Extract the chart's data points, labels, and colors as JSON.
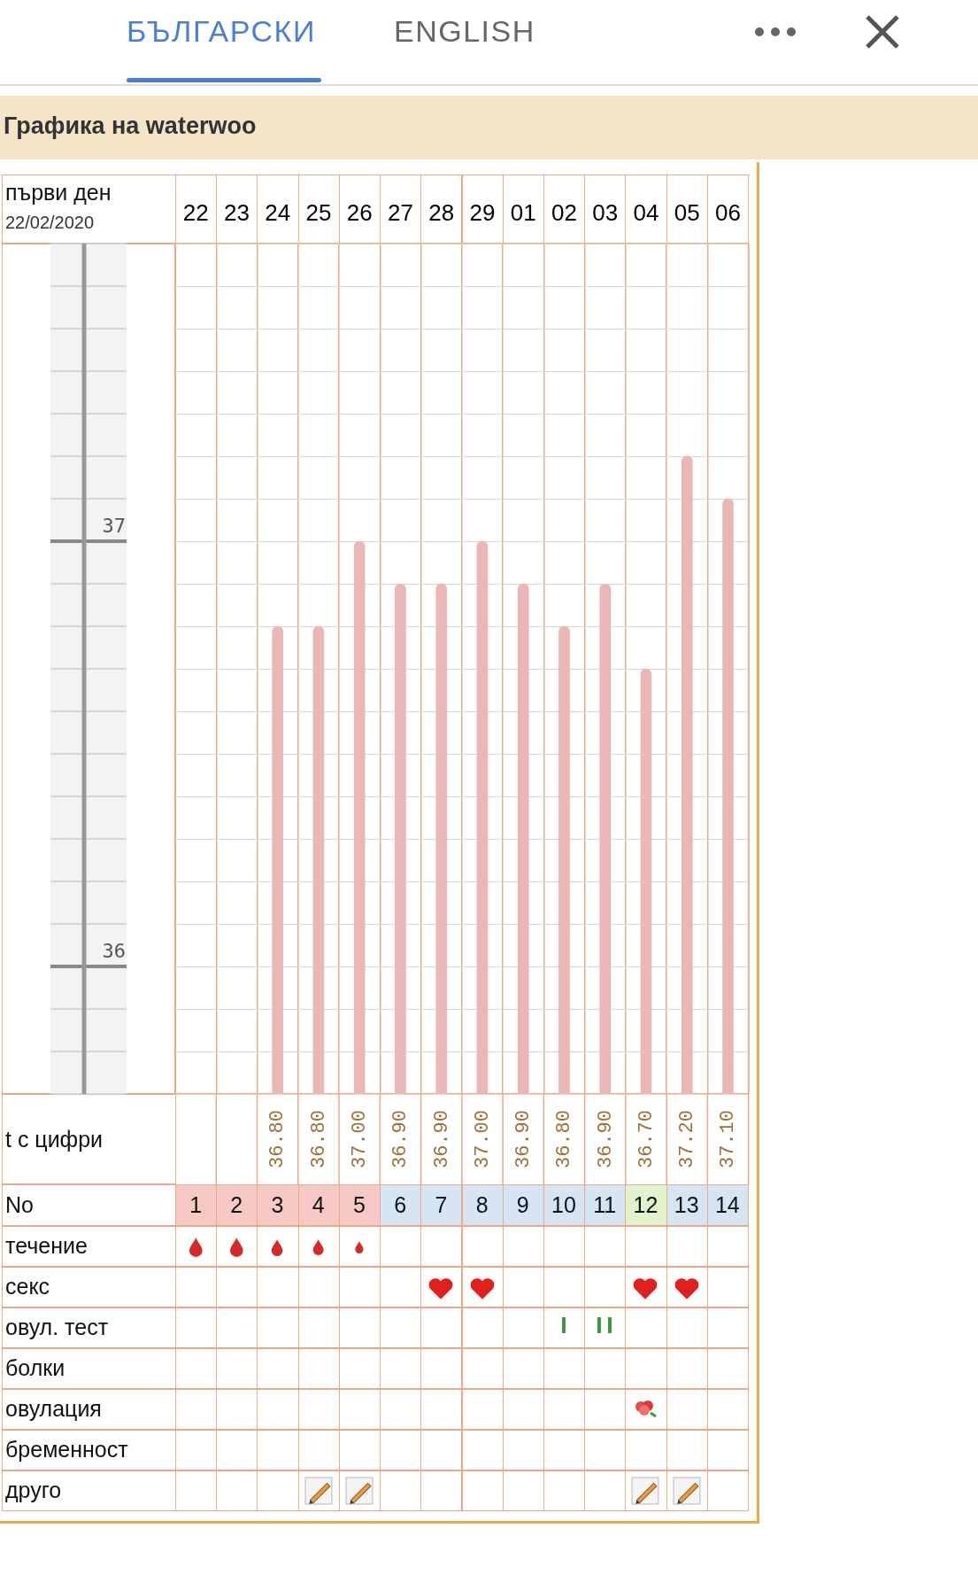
{
  "chart_data": {
    "type": "bar",
    "title": "Графика на waterwoo",
    "categories": [
      "22",
      "23",
      "24",
      "25",
      "26",
      "27",
      "28",
      "29",
      "01",
      "02",
      "03",
      "04",
      "05",
      "06"
    ],
    "values": [
      null,
      null,
      36.8,
      36.8,
      37.0,
      36.9,
      36.9,
      37.0,
      36.9,
      36.8,
      36.9,
      36.7,
      37.2,
      37.1
    ],
    "value_labels": [
      null,
      null,
      "36.80",
      "36.80",
      "37.00",
      "36.90",
      "36.90",
      "37.00",
      "36.90",
      "36.80",
      "36.90",
      "36.70",
      "37.20",
      "37.10"
    ],
    "color": "#ebb6b6",
    "ylim": [
      35.7,
      37.7
    ],
    "yticks": [
      {
        "value": 35.7,
        "label": null
      },
      {
        "value": 35.8,
        "label": null
      },
      {
        "value": 35.9,
        "label": null
      },
      36,
      {
        "value": 36.1,
        "label": null
      },
      {
        "value": 36.2,
        "label": null
      },
      {
        "value": 36.3,
        "label": null
      },
      {
        "value": 36.4,
        "label": null
      },
      {
        "value": 36.5,
        "label": null
      },
      {
        "value": 36.6,
        "label": null
      },
      {
        "value": 36.7,
        "label": null
      },
      {
        "value": 36.8,
        "label": null
      },
      {
        "value": 36.9,
        "label": null
      },
      37,
      {
        "value": 37.1,
        "label": null
      },
      {
        "value": 37.2,
        "label": null
      },
      {
        "value": 37.3,
        "label": null
      },
      {
        "value": 37.4,
        "label": null
      },
      {
        "value": 37.5,
        "label": null
      },
      {
        "value": 37.6,
        "label": null
      },
      {
        "value": 37.7,
        "label": null
      }
    ],
    "grid": true,
    "annotations": [
      "първи ден",
      "22/02/2020",
      "t с цифри",
      "No",
      "течение",
      "секс",
      "овул. тест",
      "болки",
      "овулация",
      "бременност",
      "друго",
      "БЪЛГАРСКИ",
      "ENGLISH",
      "1",
      "2",
      "3",
      "4",
      "5",
      "6",
      "7",
      "8",
      "9",
      "10",
      "11",
      "12",
      "13",
      "14"
    ]
  }
}
